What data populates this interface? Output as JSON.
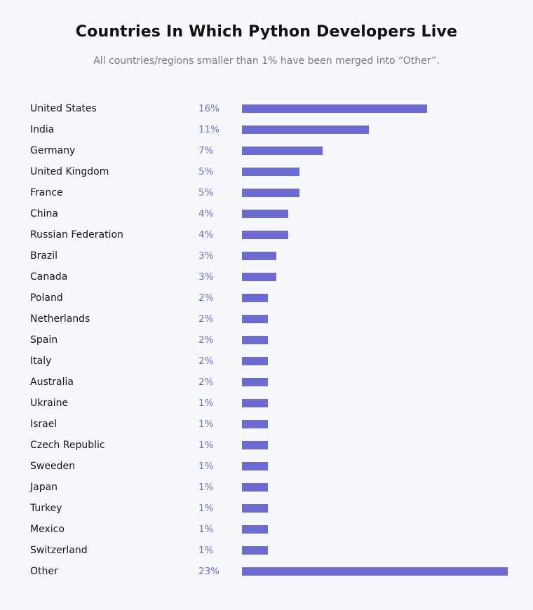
{
  "chart_data": {
    "type": "bar",
    "orientation": "horizontal",
    "title": "Countries In Which Python Developers Live",
    "subtitle": "All countries/regions smaller than 1% have been merged into “Other”.",
    "categories": [
      "United States",
      "India",
      "Germany",
      "United Kingdom",
      "France",
      "China",
      "Russian Federation",
      "Brazil",
      "Canada",
      "Poland",
      "Netherlands",
      "Spain",
      "Italy",
      "Australia",
      "Ukraine",
      "Israel",
      "Czech Republic",
      "Sweeden",
      "Japan",
      "Turkey",
      "Mexico",
      "Switzerland",
      "Other"
    ],
    "values": [
      16,
      11,
      7,
      5,
      5,
      4,
      4,
      3,
      3,
      2,
      2,
      2,
      2,
      2,
      1,
      1,
      1,
      1,
      1,
      1,
      1,
      1,
      23
    ],
    "value_labels": [
      "16%",
      "11%",
      "7%",
      "5%",
      "5%",
      "4%",
      "4%",
      "3%",
      "3%",
      "2%",
      "2%",
      "2%",
      "2%",
      "2%",
      "1%",
      "1%",
      "1%",
      "1%",
      "1%",
      "1%",
      "1%",
      "1%",
      "23%"
    ],
    "unit": "%",
    "grid": false,
    "legend": "none",
    "colors": {
      "bar": "#6b6bd2",
      "value_label": "#6f6fcf"
    }
  }
}
